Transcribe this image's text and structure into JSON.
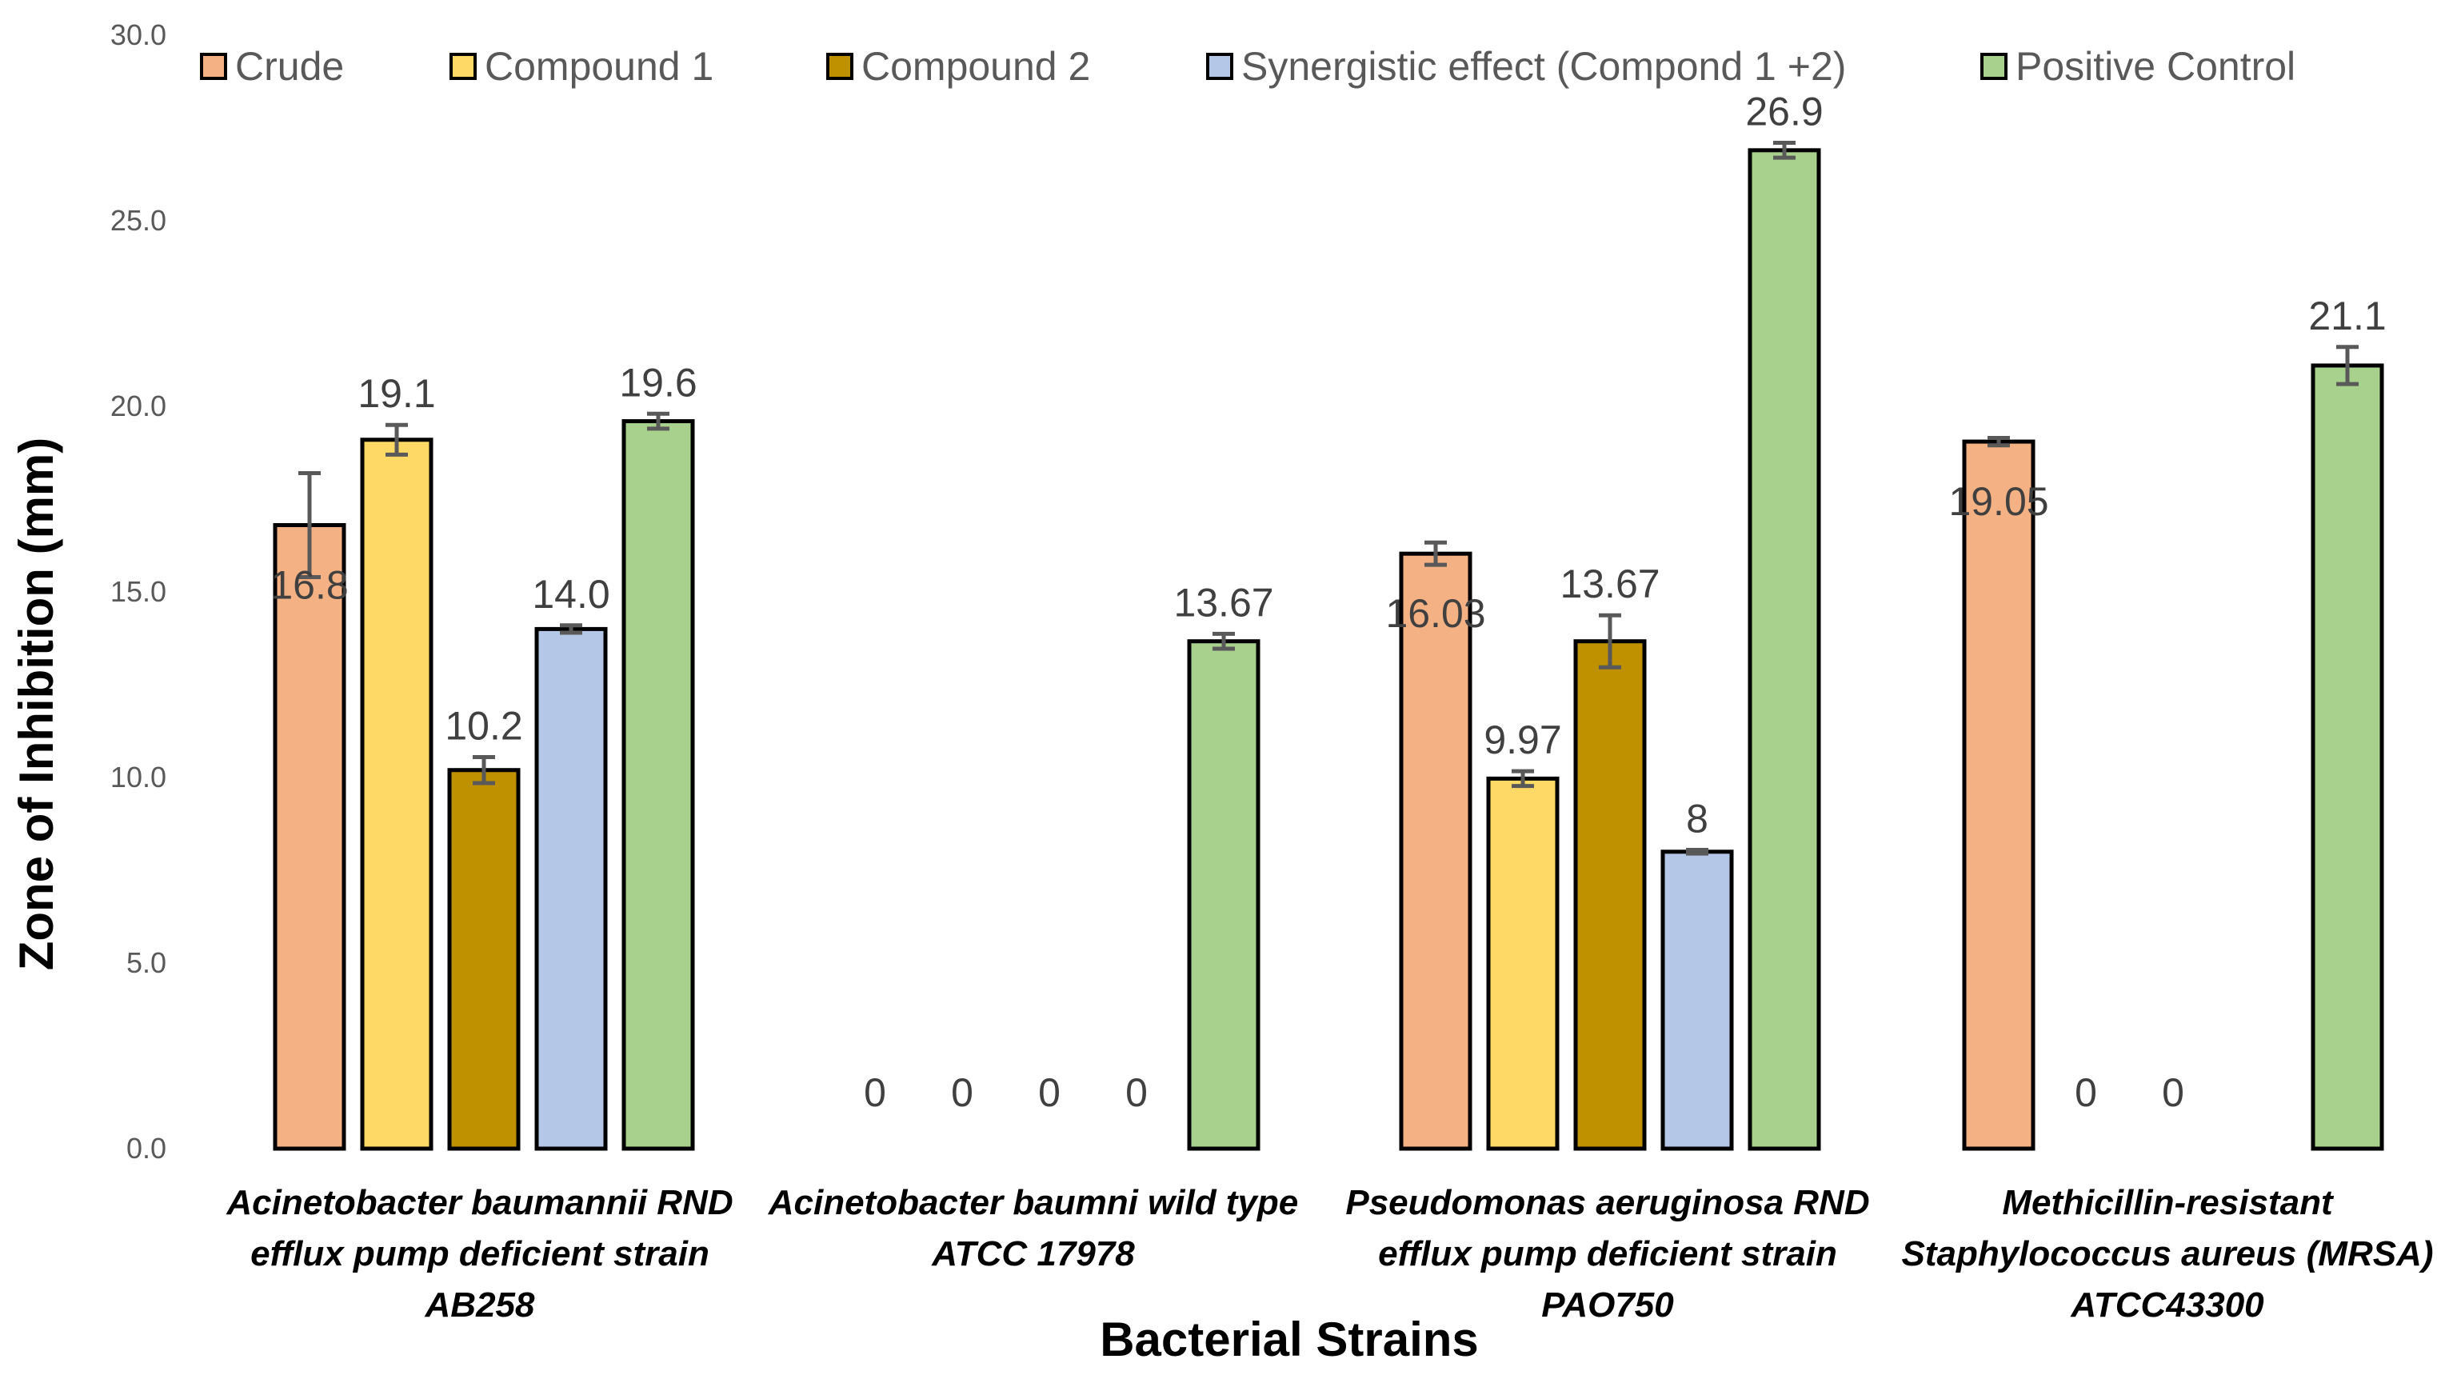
{
  "chart_data": {
    "type": "bar",
    "title": "",
    "xlabel": "Bacterial Strains",
    "ylabel": "Zone of Inhibition (mm)",
    "ylim": [
      0,
      30
    ],
    "yticks": [
      "0.0",
      "5.0",
      "10.0",
      "15.0",
      "20.0",
      "25.0",
      "30.0"
    ],
    "grid": false,
    "legend_position": "top",
    "categories": [
      [
        "Acinetobacter baumannii RND",
        "efflux pump deficient strain",
        "AB258"
      ],
      [
        "Acinetobacter baumni wild type",
        "ATCC 17978"
      ],
      [
        "Pseudomonas aeruginosa RND",
        "efflux pump deficient strain",
        "PAO750"
      ],
      [
        "Methicillin-resistant",
        "Staphylococcus aureus (MRSA)",
        "ATCC43300"
      ]
    ],
    "series": [
      {
        "name": "Crude",
        "color": "#F4B183",
        "values": [
          16.8,
          0,
          16.03,
          19.05
        ],
        "labels": [
          "16.8",
          "0",
          "16.03",
          "19.05"
        ],
        "errors": [
          1.4,
          0,
          0.3,
          0.1
        ]
      },
      {
        "name": "Compound 1",
        "color": "#FFD966",
        "values": [
          19.1,
          0,
          9.97,
          0
        ],
        "labels": [
          "19.1",
          "0",
          "9.97",
          "0"
        ],
        "errors": [
          0.4,
          0,
          0.2,
          0
        ]
      },
      {
        "name": "Compound 2",
        "color": "#BF9000",
        "values": [
          10.2,
          0,
          13.67,
          0
        ],
        "labels": [
          "10.2",
          "0",
          "13.67",
          "0"
        ],
        "errors": [
          0.35,
          0,
          0.7,
          0
        ]
      },
      {
        "name": "Synergistic effect (Compond 1 +2)",
        "color": "#B4C7E7",
        "values": [
          14.0,
          0,
          8,
          null
        ],
        "labels": [
          "14.0",
          "0",
          "8",
          null
        ],
        "errors": [
          0.1,
          0,
          0.05,
          0
        ]
      },
      {
        "name": "Positive Control",
        "color": "#A9D18E",
        "values": [
          19.6,
          13.67,
          26.9,
          21.1
        ],
        "labels": [
          "19.6",
          "13.67",
          "26.9",
          "21.1"
        ],
        "errors": [
          0.2,
          0.2,
          0.2,
          0.5
        ]
      }
    ]
  }
}
